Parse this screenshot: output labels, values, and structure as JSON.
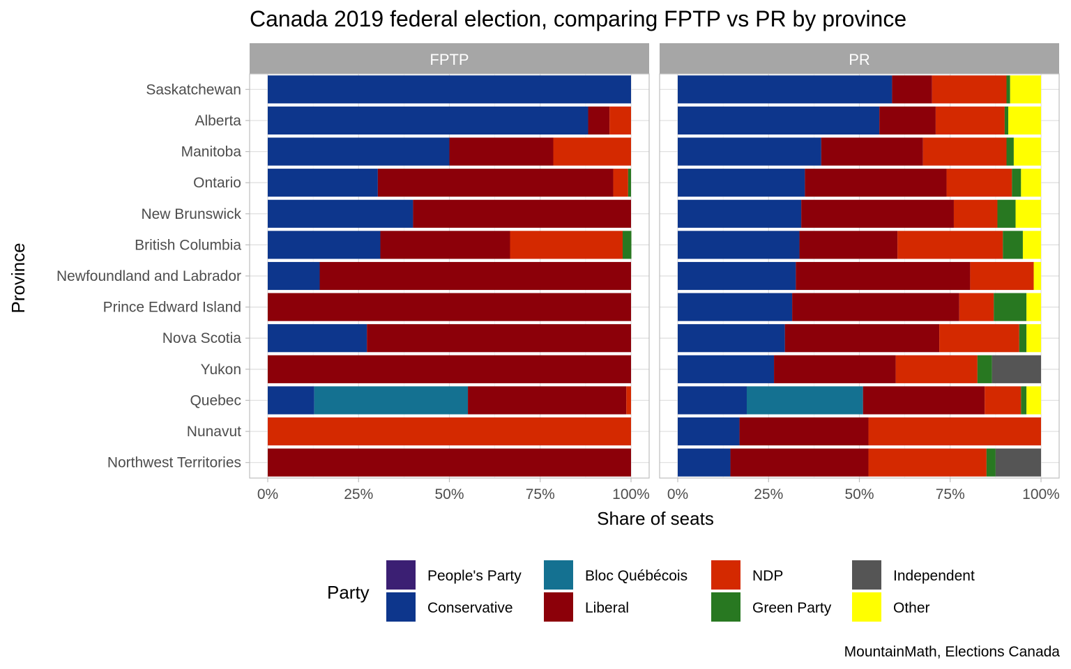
{
  "chart_data": {
    "type": "bar",
    "orientation": "horizontal",
    "stacked": true,
    "title": "Canada 2019 federal election, comparing FPTP vs PR by province",
    "xlabel": "Share of seats",
    "ylabel": "Province",
    "xlim": [
      0,
      1
    ],
    "x_ticks": [
      "0%",
      "25%",
      "50%",
      "75%",
      "100%"
    ],
    "grid": true,
    "caption": "MountainMath, Elections Canada",
    "categories": [
      "Saskatchewan",
      "Alberta",
      "Manitoba",
      "Ontario",
      "New Brunswick",
      "British Columbia",
      "Newfoundland and Labrador",
      "Prince Edward Island",
      "Nova Scotia",
      "Yukon",
      "Quebec",
      "Nunavut",
      "Northwest Territories"
    ],
    "legend": {
      "title": "Party",
      "placement": "bottom",
      "entries": [
        {
          "name": "People's Party",
          "color": "#3b1f73"
        },
        {
          "name": "Conservative",
          "color": "#0d368c"
        },
        {
          "name": "Bloc Québécois",
          "color": "#147191"
        },
        {
          "name": "Liberal",
          "color": "#8c0009"
        },
        {
          "name": "NDP",
          "color": "#d42900"
        },
        {
          "name": "Green Party",
          "color": "#287821"
        },
        {
          "name": "Independent",
          "color": "#555555"
        },
        {
          "name": "Other",
          "color": "#ffff00"
        }
      ]
    },
    "stack_order": [
      "Conservative",
      "Bloc Québécois",
      "Liberal",
      "NDP",
      "Green Party",
      "Independent",
      "Other"
    ],
    "panels": [
      {
        "label": "FPTP",
        "series": [
          {
            "name": "Conservative",
            "values": [
              1.0,
              0.882,
              0.5,
              0.303,
              0.4,
              0.31,
              0.143,
              0.0,
              0.273,
              0.0,
              0.128,
              0.0,
              0.0
            ]
          },
          {
            "name": "Bloc Québécois",
            "values": [
              0,
              0,
              0,
              0,
              0,
              0,
              0,
              0,
              0,
              0,
              0.423,
              0,
              0
            ]
          },
          {
            "name": "Liberal",
            "values": [
              0.0,
              0.059,
              0.286,
              0.648,
              0.6,
              0.357,
              0.857,
              1.0,
              0.727,
              1.0,
              0.436,
              0.0,
              1.0
            ]
          },
          {
            "name": "NDP",
            "values": [
              0.0,
              0.059,
              0.214,
              0.041,
              0.0,
              0.31,
              0.0,
              0.0,
              0.0,
              0.0,
              0.013,
              1.0,
              0.0
            ]
          },
          {
            "name": "Green Party",
            "values": [
              0.0,
              0.0,
              0.0,
              0.008,
              0.0,
              0.024,
              0.0,
              0.0,
              0.0,
              0.0,
              0.0,
              0.0,
              0.0
            ]
          },
          {
            "name": "Independent",
            "values": [
              0,
              0,
              0,
              0,
              0,
              0,
              0,
              0,
              0,
              0,
              0,
              0,
              0
            ]
          },
          {
            "name": "Other",
            "values": [
              0,
              0,
              0,
              0,
              0,
              0,
              0,
              0,
              0,
              0,
              0,
              0,
              0
            ]
          }
        ]
      },
      {
        "label": "PR",
        "series": [
          {
            "name": "Conservative",
            "values": [
              0.59,
              0.555,
              0.395,
              0.35,
              0.34,
              0.335,
              0.325,
              0.315,
              0.295,
              0.265,
              0.19,
              0.17,
              0.145
            ]
          },
          {
            "name": "Bloc Québécois",
            "values": [
              0,
              0,
              0,
              0,
              0,
              0,
              0,
              0,
              0,
              0,
              0.32,
              0,
              0
            ]
          },
          {
            "name": "Liberal",
            "values": [
              0.11,
              0.155,
              0.28,
              0.39,
              0.42,
              0.27,
              0.48,
              0.46,
              0.425,
              0.335,
              0.335,
              0.355,
              0.38
            ]
          },
          {
            "name": "NDP",
            "values": [
              0.205,
              0.19,
              0.23,
              0.18,
              0.12,
              0.29,
              0.175,
              0.095,
              0.22,
              0.225,
              0.1,
              0.475,
              0.325
            ]
          },
          {
            "name": "Green Party",
            "values": [
              0.01,
              0.01,
              0.02,
              0.025,
              0.05,
              0.055,
              0.0,
              0.09,
              0.02,
              0.04,
              0.015,
              0.0,
              0.025
            ]
          },
          {
            "name": "Independent",
            "values": [
              0,
              0,
              0,
              0,
              0,
              0,
              0,
              0,
              0,
              0.135,
              0,
              0,
              0.125
            ]
          },
          {
            "name": "Other",
            "values": [
              0.085,
              0.09,
              0.075,
              0.055,
              0.07,
              0.05,
              0.02,
              0.04,
              0.04,
              0.0,
              0.04,
              0.0,
              0.0
            ]
          }
        ]
      }
    ]
  }
}
